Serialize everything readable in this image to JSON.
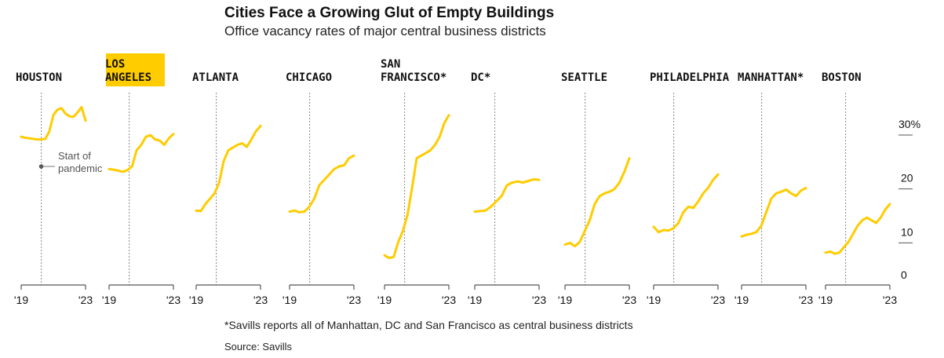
{
  "title": "Cities Face a Growing Glut of Empty Buildings",
  "subtitle": "Office vacancy rates of major central business districts",
  "footnote": "*Savills reports all of Manhattan, DC and San Francisco as central business districts",
  "source": "Source: Savills",
  "colors": {
    "line": "#FFCC00",
    "highlight": "#FFCC00",
    "axis": "#555555",
    "pandemic_line": "#888888"
  },
  "chart_data": {
    "type": "line",
    "title": "Cities Face a Growing Glut of Empty Buildings",
    "subtitle": "Office vacancy rates of major central business districts",
    "x_tick_labels": [
      "'19",
      "'23"
    ],
    "xlim": [
      2019,
      2023
    ],
    "y_ticks": [
      0,
      10,
      20,
      30
    ],
    "y_tick_labels": [
      "0",
      "10",
      "20",
      "30%"
    ],
    "ylim": [
      0,
      33
    ],
    "pandemic_x": 2020.25,
    "annotation": [
      "Start of",
      "pandemic"
    ],
    "highlighted": "LOS ANGELES",
    "series": [
      {
        "name": "HOUSTON",
        "label_lines": [
          "HOUSTON"
        ],
        "x_start": 2019.0,
        "values": [
          27.5,
          27.3,
          27.2,
          27.1,
          27.0,
          27.0,
          27.1,
          28.5,
          31.5,
          32.5,
          32.8,
          31.8,
          31.3,
          31.2,
          32.0,
          33.0,
          30.5
        ]
      },
      {
        "name": "LOS ANGELES",
        "label_lines": [
          "LOS",
          "ANGELES"
        ],
        "x_start": 2019.0,
        "values": [
          21.5,
          21.4,
          21.2,
          21.0,
          21.3,
          22.0,
          25.0,
          26.0,
          27.5,
          27.8,
          27.0,
          26.8,
          26.0,
          27.2,
          28.0
        ]
      },
      {
        "name": "ATLANTA",
        "label_lines": [
          "ATLANTA"
        ],
        "x_start": 2019.0,
        "values": [
          13.8,
          13.7,
          15.0,
          16.0,
          17.0,
          19.0,
          23.0,
          25.0,
          25.5,
          26.0,
          26.3,
          25.6,
          27.0,
          28.5,
          29.5
        ]
      },
      {
        "name": "CHICAGO",
        "label_lines": [
          "CHICAGO"
        ],
        "x_start": 2019.0,
        "values": [
          13.6,
          13.8,
          13.5,
          13.6,
          14.5,
          16.0,
          18.5,
          19.5,
          20.5,
          21.5,
          22.0,
          22.2,
          23.5,
          24.0
        ]
      },
      {
        "name": "SAN FRANCISCO*",
        "label_lines": [
          "SAN",
          "FRANCISCO*"
        ],
        "x_start": 2019.0,
        "values": [
          5.5,
          5.0,
          5.2,
          8.0,
          10.0,
          13.0,
          18.0,
          23.5,
          24.0,
          24.5,
          25.0,
          26.0,
          27.5,
          30.0,
          31.5
        ]
      },
      {
        "name": "DC*",
        "label_lines": [
          "DC*"
        ],
        "x_start": 2019.0,
        "values": [
          13.6,
          13.7,
          13.8,
          14.5,
          15.5,
          16.5,
          18.5,
          19.0,
          19.2,
          19.0,
          19.3,
          19.6,
          19.5
        ]
      },
      {
        "name": "SEATTLE",
        "label_lines": [
          "SEATTLE"
        ],
        "x_start": 2019.0,
        "values": [
          7.5,
          7.8,
          7.2,
          8.0,
          10.0,
          12.0,
          15.0,
          16.5,
          17.0,
          17.3,
          17.8,
          19.0,
          21.0,
          23.5
        ]
      },
      {
        "name": "PHILADELPHIA",
        "label_lines": [
          "PHILADELPHIA"
        ],
        "x_start": 2019.0,
        "values": [
          10.8,
          9.8,
          10.2,
          10.1,
          10.5,
          11.5,
          13.5,
          14.5,
          14.3,
          15.5,
          17.0,
          18.0,
          19.5,
          20.5
        ]
      },
      {
        "name": "MANHATTAN*",
        "label_lines": [
          "MANHATTAN*"
        ],
        "x_start": 2019.0,
        "values": [
          9.0,
          9.3,
          9.5,
          9.8,
          11.0,
          13.5,
          16.0,
          17.0,
          17.3,
          17.7,
          17.0,
          16.5,
          17.5,
          18.0
        ]
      },
      {
        "name": "BOSTON",
        "label_lines": [
          "BOSTON"
        ],
        "x_start": 2019.0,
        "values": [
          6.0,
          6.2,
          5.8,
          6.0,
          7.0,
          8.0,
          9.5,
          11.0,
          12.0,
          12.5,
          12.0,
          11.5,
          12.5,
          14.0,
          15.0
        ]
      }
    ]
  }
}
